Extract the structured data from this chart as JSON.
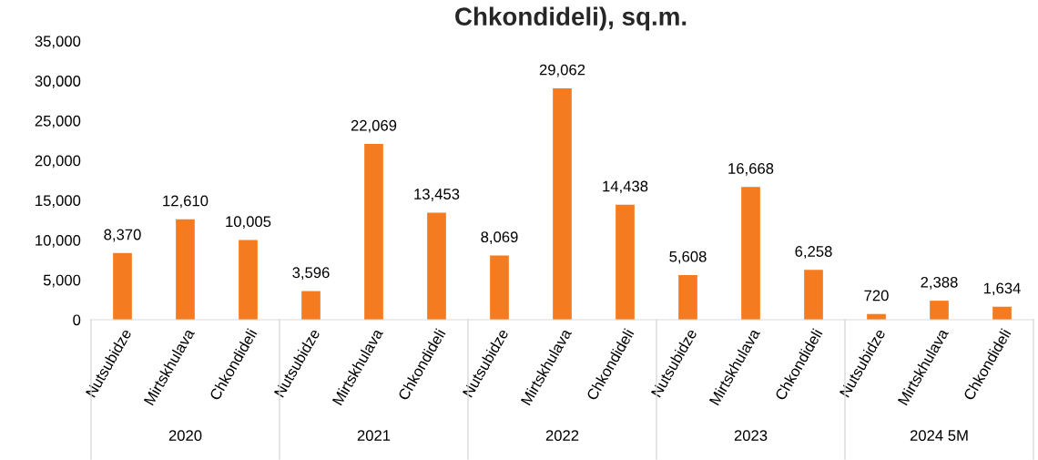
{
  "chart_data": {
    "type": "bar",
    "title": "Chkondideli), sq.m.",
    "categories": [
      "Nutsubidze",
      "Mirtskhulava",
      "Chkondideli",
      "Nutsubidze",
      "Mirtskhulava",
      "Chkondideli",
      "Nutsubidze",
      "Mirtskhulava",
      "Chkondideli",
      "Nutsubidze",
      "Mirtskhulava",
      "Chkondideli",
      "Nutsubidze",
      "Mirtskhulava",
      "Chkondideli"
    ],
    "values": [
      8370,
      12610,
      10005,
      3596,
      22069,
      13453,
      8069,
      29062,
      14438,
      5608,
      16668,
      6258,
      720,
      2388,
      1634
    ],
    "color": "#f47b20",
    "ylim": [
      0,
      35000
    ],
    "yticks": [
      {
        "value": 0,
        "label": "0"
      },
      {
        "value": 5000,
        "label": "5,000"
      },
      {
        "value": 10000,
        "label": "10,000"
      },
      {
        "value": 15000,
        "label": "15,000"
      },
      {
        "value": 20000,
        "label": "20,000"
      },
      {
        "value": 25000,
        "label": "25,000"
      },
      {
        "value": 30000,
        "label": "30,000"
      },
      {
        "value": 35000,
        "label": "35,000"
      }
    ],
    "value_labels": [
      "8,370",
      "12,610",
      "10,005",
      "3,596",
      "22,069",
      "13,453",
      "8,069",
      "29,062",
      "14,438",
      "5,608",
      "16,668",
      "6,258",
      "720",
      "2,388",
      "1,634"
    ],
    "grid": false,
    "annotations": [
      "2020",
      "2021",
      "2022",
      "2023",
      "2024 5M"
    ]
  }
}
